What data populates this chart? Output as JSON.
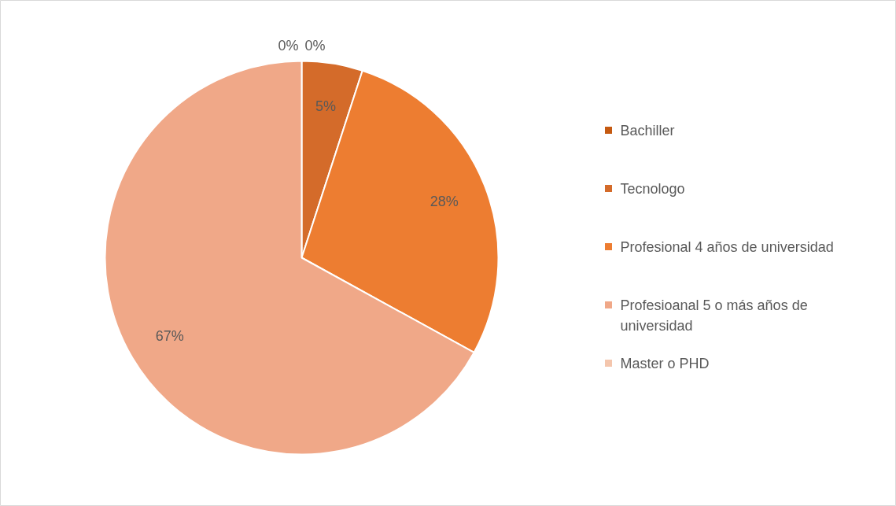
{
  "chart_data": {
    "type": "pie",
    "categories": [
      "Bachiller",
      "Tecnologo",
      "Profesional 4 años de universidad",
      "Profesioanal 5 o más años de universidad",
      "Master o PHD"
    ],
    "values": [
      0,
      5,
      28,
      67,
      0
    ],
    "colors": [
      "#c55a11",
      "#d46b2a",
      "#ed7d31",
      "#f0a888",
      "#f4c6ad"
    ],
    "value_labels": [
      "0%",
      "5%",
      "28%",
      "67%",
      "0%"
    ],
    "legend": "right"
  }
}
